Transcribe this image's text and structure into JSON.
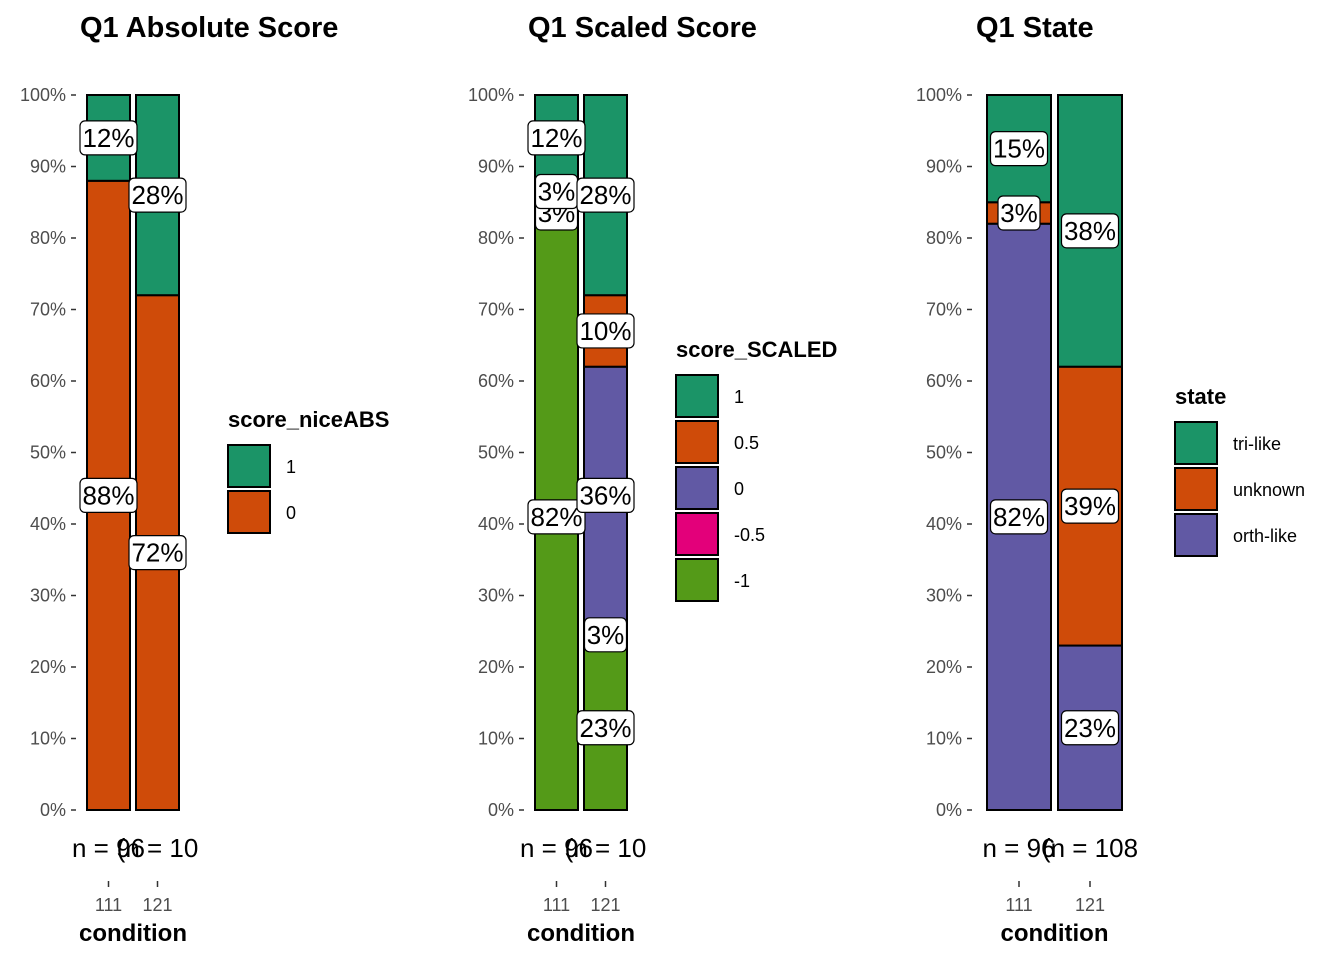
{
  "chart_data": [
    {
      "type": "bar",
      "stacked": "percent",
      "title": "Q1 Absolute Score",
      "xlabel": "condition",
      "ylabel": "",
      "ylim": [
        0,
        100
      ],
      "yticks": [
        "0%",
        "10%",
        "20%",
        "30%",
        "40%",
        "50%",
        "60%",
        "70%",
        "80%",
        "90%",
        "100%"
      ],
      "grid": false,
      "legend_position": "right",
      "categories": [
        "111",
        "121"
      ],
      "count_labels": [
        "n = 96",
        "(n = 10"
      ],
      "legend_title": "score_niceABS",
      "series": [
        {
          "name": "1",
          "color": "#1b9467",
          "values": [
            12,
            28
          ],
          "labels": [
            "12%",
            "28%"
          ]
        },
        {
          "name": "0",
          "color": "#cf4b09",
          "values": [
            88,
            72
          ],
          "labels": [
            "88%",
            "72%"
          ]
        }
      ]
    },
    {
      "type": "bar",
      "stacked": "percent",
      "title": "Q1 Scaled Score",
      "xlabel": "condition",
      "ylabel": "",
      "ylim": [
        0,
        100
      ],
      "yticks": [
        "0%",
        "10%",
        "20%",
        "30%",
        "40%",
        "50%",
        "60%",
        "70%",
        "80%",
        "90%",
        "100%"
      ],
      "grid": false,
      "legend_position": "right",
      "categories": [
        "111",
        "121"
      ],
      "count_labels": [
        "n = 96",
        "(n = 10"
      ],
      "legend_title": "score_SCALED",
      "series": [
        {
          "name": "1",
          "color": "#1b9467",
          "values": [
            12,
            28
          ],
          "labels": [
            "12%",
            "28%"
          ]
        },
        {
          "name": "0.5",
          "color": "#cf4b09",
          "values": [
            3,
            10
          ],
          "labels": [
            "3%",
            "10%"
          ]
        },
        {
          "name": "0",
          "color": "#6159a4",
          "values": [
            3,
            36
          ],
          "labels": [
            "3%",
            "36%"
          ]
        },
        {
          "name": "-0.5",
          "color": "#e3007a",
          "values": [
            0,
            3
          ],
          "labels": [
            "",
            "3%"
          ]
        },
        {
          "name": "-1",
          "color": "#549a18",
          "values": [
            82,
            23
          ],
          "labels": [
            "82%",
            "23%"
          ]
        }
      ]
    },
    {
      "type": "bar",
      "stacked": "percent",
      "title": "Q1 State",
      "xlabel": "condition",
      "ylabel": "",
      "ylim": [
        0,
        100
      ],
      "yticks": [
        "0%",
        "10%",
        "20%",
        "30%",
        "40%",
        "50%",
        "60%",
        "70%",
        "80%",
        "90%",
        "100%"
      ],
      "grid": false,
      "legend_position": "right",
      "categories": [
        "111",
        "121"
      ],
      "count_labels": [
        "n = 96",
        "(n = 108"
      ],
      "legend_title": "state",
      "series": [
        {
          "name": "tri-like",
          "color": "#1b9467",
          "values": [
            15,
            38
          ],
          "labels": [
            "15%",
            "38%"
          ]
        },
        {
          "name": "unknown",
          "color": "#cf4b09",
          "values": [
            3,
            39
          ],
          "labels": [
            "3%",
            "39%"
          ]
        },
        {
          "name": "orth-like",
          "color": "#6159a4",
          "values": [
            82,
            23
          ],
          "labels": [
            "82%",
            "23%"
          ]
        }
      ]
    }
  ]
}
